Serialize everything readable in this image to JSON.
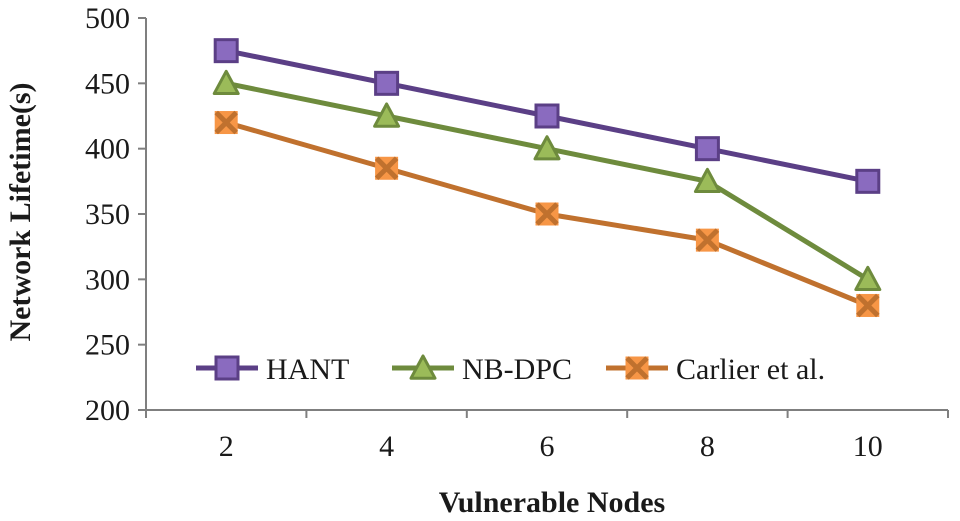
{
  "chart_data": {
    "type": "line",
    "title": "",
    "xlabel": "Vulnerable Nodes",
    "ylabel": "Network Lifetime(s)",
    "categories": [
      "2",
      "4",
      "6",
      "8",
      "10"
    ],
    "ylim": [
      200,
      500
    ],
    "yticks": [
      200,
      250,
      300,
      350,
      400,
      450,
      500
    ],
    "grid": false,
    "legend_position": "bottom-inside",
    "series": [
      {
        "name": "HANT",
        "values": [
          475,
          450,
          425,
          400,
          375
        ],
        "color": "#5b3f86",
        "marker_fill": "#8a6bbf",
        "marker": "square"
      },
      {
        "name": "NB-DPC",
        "values": [
          450,
          425,
          400,
          375,
          300
        ],
        "color": "#6e8b3d",
        "marker_fill": "#9bbb59",
        "marker": "triangle"
      },
      {
        "name": "Carlier et al.",
        "values": [
          420,
          385,
          350,
          330,
          280
        ],
        "color": "#c0712e",
        "marker_fill": "#f79646",
        "marker": "x-square"
      }
    ]
  }
}
